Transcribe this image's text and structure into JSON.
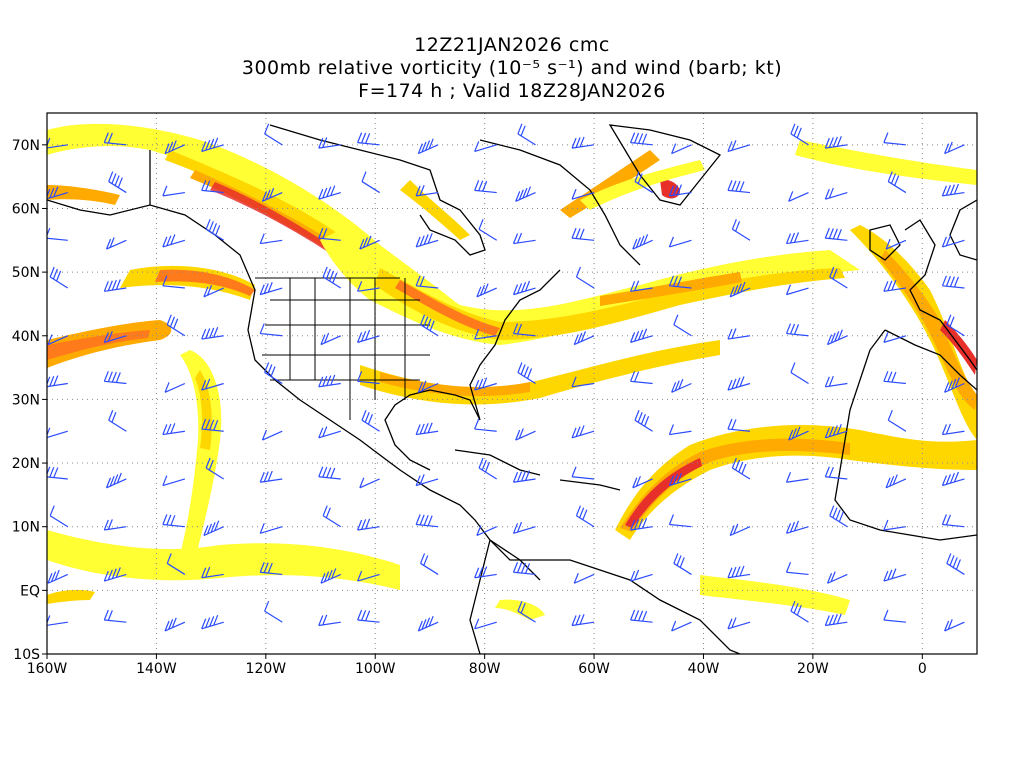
{
  "title": {
    "line1": "12Z21JAN2026 cmc",
    "line2": "300mb relative vorticity (10⁻⁵ s⁻¹) and wind (barb; kt)",
    "line3": "F=174 h ; Valid 18Z28JAN2026"
  },
  "map": {
    "lon_range": [
      -160,
      10
    ],
    "lat_range": [
      -10,
      75
    ],
    "grid": "dotted",
    "colors": {
      "vort_light": "#ffff33",
      "vort_yellow": "#ffd700",
      "vort_orange": "#ffaa00",
      "vort_dark_orange": "#ff7a1a",
      "vort_red": "#e8302a",
      "barb": "#2b4bff",
      "coast": "#000000"
    },
    "lat_ticks": [
      {
        "lat": 70,
        "label": "70N"
      },
      {
        "lat": 60,
        "label": "60N"
      },
      {
        "lat": 50,
        "label": "50N"
      },
      {
        "lat": 40,
        "label": "40N"
      },
      {
        "lat": 30,
        "label": "30N"
      },
      {
        "lat": 20,
        "label": "20N"
      },
      {
        "lat": 10,
        "label": "10N"
      },
      {
        "lat": 0,
        "label": "EQ"
      },
      {
        "lat": -10,
        "label": "10S"
      }
    ],
    "lon_ticks": [
      {
        "lon": -160,
        "label": "160W"
      },
      {
        "lon": -140,
        "label": "140W"
      },
      {
        "lon": -120,
        "label": "120W"
      },
      {
        "lon": -100,
        "label": "100W"
      },
      {
        "lon": -80,
        "label": "80W"
      },
      {
        "lon": -60,
        "label": "60W"
      },
      {
        "lon": -40,
        "label": "40W"
      },
      {
        "lon": -20,
        "label": "20W"
      },
      {
        "lon": 0,
        "label": "0"
      }
    ]
  }
}
